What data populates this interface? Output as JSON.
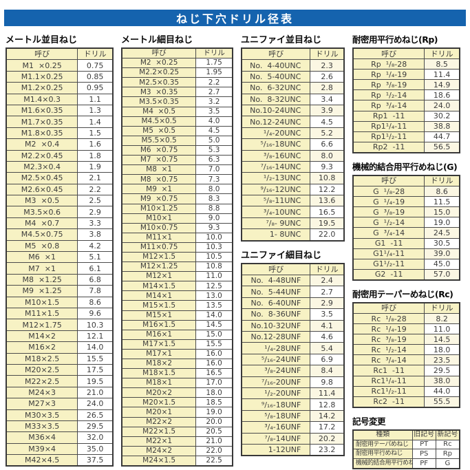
{
  "title": "ねじ下穴ドリル径表",
  "colors": {
    "header_bar": "#1563ae",
    "cell_cream": "#f7f2c4",
    "stripe_cream": "#fbf7e3",
    "border": "#4a4a4a",
    "text": "#3c3c3c"
  },
  "tables": {
    "metric_coarse": {
      "title": "メートル並目ねじ",
      "headers": [
        "呼び",
        "ドリル"
      ],
      "rows": [
        [
          "M1  ×0.25",
          "0.75"
        ],
        [
          "M1.1×0.25",
          "0.85"
        ],
        [
          "M1.2×0.25",
          "0.95"
        ],
        [
          "M1.4×0.3",
          "1.1"
        ],
        [
          "M1.6×0.35",
          "1.3"
        ],
        [
          "M1.7×0.35",
          "1.4"
        ],
        [
          "M1.8×0.35",
          "1.5"
        ],
        [
          "M2  ×0.4",
          "1.6"
        ],
        [
          "M2.2×0.45",
          "1.8"
        ],
        [
          "M2.3×0.4",
          "1.9"
        ],
        [
          "M2.5×0.45",
          "2.1"
        ],
        [
          "M2.6×0.45",
          "2.2"
        ],
        [
          "M3  ×0.5",
          "2.5"
        ],
        [
          "M3.5×0.6",
          "2.9"
        ],
        [
          "M4  ×0.7",
          "3.3"
        ],
        [
          "M4.5×0.75",
          "3.8"
        ],
        [
          "M5  ×0.8",
          "4.2"
        ],
        [
          "M6  ×1",
          "5.1"
        ],
        [
          "M7  ×1",
          "6.1"
        ],
        [
          "M8  ×1.25",
          "6.8"
        ],
        [
          "M9  ×1.25",
          "7.8"
        ],
        [
          "M10×1.5",
          "8.6"
        ],
        [
          "M11×1.5",
          "9.6"
        ],
        [
          "M12×1.75",
          "10.3"
        ],
        [
          "M14×2",
          "12.1"
        ],
        [
          "M16×2",
          "14.0"
        ],
        [
          "M18×2.5",
          "15.5"
        ],
        [
          "M20×2.5",
          "17.5"
        ],
        [
          "M22×2.5",
          "19.5"
        ],
        [
          "M24×3",
          "21.0"
        ],
        [
          "M27×3",
          "24.0"
        ],
        [
          "M30×3.5",
          "26.5"
        ],
        [
          "M33×3.5",
          "29.5"
        ],
        [
          "M36×4",
          "32.0"
        ],
        [
          "M39×4",
          "35.0"
        ],
        [
          "M42×4.5",
          "37.5"
        ]
      ]
    },
    "metric_fine": {
      "title": "メートル細目ねじ",
      "headers": [
        "呼び",
        "ドリル"
      ],
      "rows": [
        [
          "M2  ×0.25",
          "1.75"
        ],
        [
          "M2.2×0.25",
          "1.95"
        ],
        [
          "M2.5×0.35",
          "2.2"
        ],
        [
          "M3  ×0.35",
          "2.7"
        ],
        [
          "M3.5×0.35",
          "3.2"
        ],
        [
          "M4  ×0.5",
          "3.5"
        ],
        [
          "M4.5×0.5",
          "4.0"
        ],
        [
          "M5  ×0.5",
          "4.5"
        ],
        [
          "M5.5×0.5",
          "5.0"
        ],
        [
          "M6  ×0.75",
          "5.3"
        ],
        [
          "M7  ×0.75",
          "6.3"
        ],
        [
          "M8  ×1",
          "7.0"
        ],
        [
          "M8  ×0.75",
          "7.3"
        ],
        [
          "M9  ×1",
          "8.0"
        ],
        [
          "M9  ×0.75",
          "8.3"
        ],
        [
          "M10×1.25",
          "8.8"
        ],
        [
          "M10×1",
          "9.0"
        ],
        [
          "M10×0.75",
          "9.3"
        ],
        [
          "M11×1",
          "10.0"
        ],
        [
          "M11×0.75",
          "10.3"
        ],
        [
          "M12×1.5",
          "10.5"
        ],
        [
          "M12×1.25",
          "10.8"
        ],
        [
          "M12×1",
          "11.0"
        ],
        [
          "M14×1.5",
          "12.5"
        ],
        [
          "M14×1",
          "13.0"
        ],
        [
          "M15×1.5",
          "13.5"
        ],
        [
          "M15×1",
          "14.0"
        ],
        [
          "M16×1.5",
          "14.5"
        ],
        [
          "M16×1",
          "15.0"
        ],
        [
          "M17×1.5",
          "15.5"
        ],
        [
          "M17×1",
          "16.0"
        ],
        [
          "M18×2",
          "16.0"
        ],
        [
          "M18×1.5",
          "16.5"
        ],
        [
          "M18×1",
          "17.0"
        ],
        [
          "M20×2",
          "18.0"
        ],
        [
          "M20×1.5",
          "18.5"
        ],
        [
          "M20×1",
          "19.0"
        ],
        [
          "M22×2",
          "20.0"
        ],
        [
          "M22×1.5",
          "20.5"
        ],
        [
          "M22×1",
          "21.0"
        ],
        [
          "M24×2",
          "22.0"
        ],
        [
          "M24×1.5",
          "22.5"
        ]
      ]
    },
    "unified_coarse": {
      "title": "ユニファイ並目ねじ",
      "headers": [
        "呼び",
        "ドリル"
      ],
      "rows": [
        [
          "No.  4-40UNC",
          "2.3"
        ],
        [
          "No.  5-40UNC",
          "2.6"
        ],
        [
          "No.  6-32UNC",
          "2.8"
        ],
        [
          "No.  8-32UNC",
          "3.4"
        ],
        [
          "No.10-24UNC",
          "3.9"
        ],
        [
          "No.12-24UNC",
          "4.5"
        ],
        [
          "¹/₄-20UNC",
          "5.2"
        ],
        [
          "⁵/₁₆-18UNC",
          "6.6"
        ],
        [
          "³/₈-16UNC",
          "8.0"
        ],
        [
          "⁷/₁₆-14UNC",
          "9.3"
        ],
        [
          "¹/₂-13UNC",
          "10.8"
        ],
        [
          "⁹/₁₆-12UNC",
          "12.2"
        ],
        [
          "⁵/₈-11UNC",
          "13.6"
        ],
        [
          "³/₄-10UNC",
          "16.5"
        ],
        [
          "⁷/₈- 9UNC",
          "19.5"
        ],
        [
          "1- 8UNC",
          "22.0"
        ]
      ]
    },
    "unified_fine": {
      "title": "ユニファイ細目ねじ",
      "headers": [
        "呼び",
        "ドリル"
      ],
      "rows": [
        [
          "No.  4-48UNF",
          "2.4"
        ],
        [
          "No.  5-44UNF",
          "2.7"
        ],
        [
          "No.  6-40UNF",
          "2.9"
        ],
        [
          "No.  8-36UNF",
          "3.5"
        ],
        [
          "No.10-32UNF",
          "4.1"
        ],
        [
          "No.12-28UNF",
          "4.6"
        ],
        [
          "¹/₄-28UNF",
          "5.4"
        ],
        [
          "⁵/₁₆-24UNF",
          "6.9"
        ],
        [
          "³/₈-24UNF",
          "8.4"
        ],
        [
          "⁷/₁₆-20UNF",
          "9.8"
        ],
        [
          "¹/₂-20UNF",
          "11.4"
        ],
        [
          "⁹/₁₆-18UNF",
          "12.8"
        ],
        [
          "⁵/₈-18UNF",
          "14.2"
        ],
        [
          "³/₄-16UNF",
          "17.2"
        ],
        [
          "⁷/₈-14UNF",
          "20.2"
        ],
        [
          "1-12UNF",
          "23.2"
        ]
      ]
    },
    "rp": {
      "title": "耐密用平行めねじ(Rp)",
      "headers": [
        "呼び",
        "ドリル"
      ],
      "rows": [
        [
          "Rp  ¹/₈-28",
          "8.5"
        ],
        [
          "Rp  ¹/₄-19",
          "11.4"
        ],
        [
          "Rp  ³/₈-19",
          "14.9"
        ],
        [
          "Rp  ¹/₂-14",
          "18.6"
        ],
        [
          "Rp  ³/₄-14",
          "24.0"
        ],
        [
          "Rp1  -11",
          "30.2"
        ],
        [
          "Rp1¹/₄-11",
          "38.8"
        ],
        [
          "Rp1¹/₂-11",
          "44.7"
        ],
        [
          "Rp2  -11",
          "56.5"
        ]
      ]
    },
    "g": {
      "title": "機械的結合用平行めねじ(G)",
      "headers": [
        "呼び",
        "ドリル"
      ],
      "rows": [
        [
          "G  ¹/₈-28",
          "8.6"
        ],
        [
          "G  ¹/₄-19",
          "11.5"
        ],
        [
          "G  ³/₈-19",
          "15.0"
        ],
        [
          "G  ¹/₂-14",
          "19.0"
        ],
        [
          "G  ³/₄-14",
          "24.5"
        ],
        [
          "G1  -11",
          "30.5"
        ],
        [
          "G1¹/₄-11",
          "39.0"
        ],
        [
          "G1¹/₂-11",
          "45.0"
        ],
        [
          "G2  -11",
          "57.0"
        ]
      ]
    },
    "rc": {
      "title": "耐密用テーパーめねじ(Rc)",
      "headers": [
        "呼び",
        "ドリル"
      ],
      "rows": [
        [
          "Rc  ¹/₈-28",
          "8.2"
        ],
        [
          "Rc  ¹/₄-19",
          "11.0"
        ],
        [
          "Rc  ³/₈-19",
          "14.5"
        ],
        [
          "Rc  ¹/₂-14",
          "18.0"
        ],
        [
          "Rc  ³/₄-14",
          "23.5"
        ],
        [
          "Rc1  -11",
          "29.5"
        ],
        [
          "Rc1¹/₄-11",
          "38.0"
        ],
        [
          "Rc1¹/₂-11",
          "44.0"
        ],
        [
          "Rc2  -11",
          "55.5"
        ]
      ]
    },
    "symbol_change": {
      "title": "記号変更",
      "headers": [
        "種類",
        "旧記号",
        "新記号"
      ],
      "rows": [
        [
          "耐密用テーパめねじ",
          "PT",
          "Rc"
        ],
        [
          "耐密用平行めねじ",
          "PS",
          "Rp"
        ],
        [
          "機械的結合用平行めねじ",
          "PF",
          "G"
        ]
      ]
    }
  }
}
